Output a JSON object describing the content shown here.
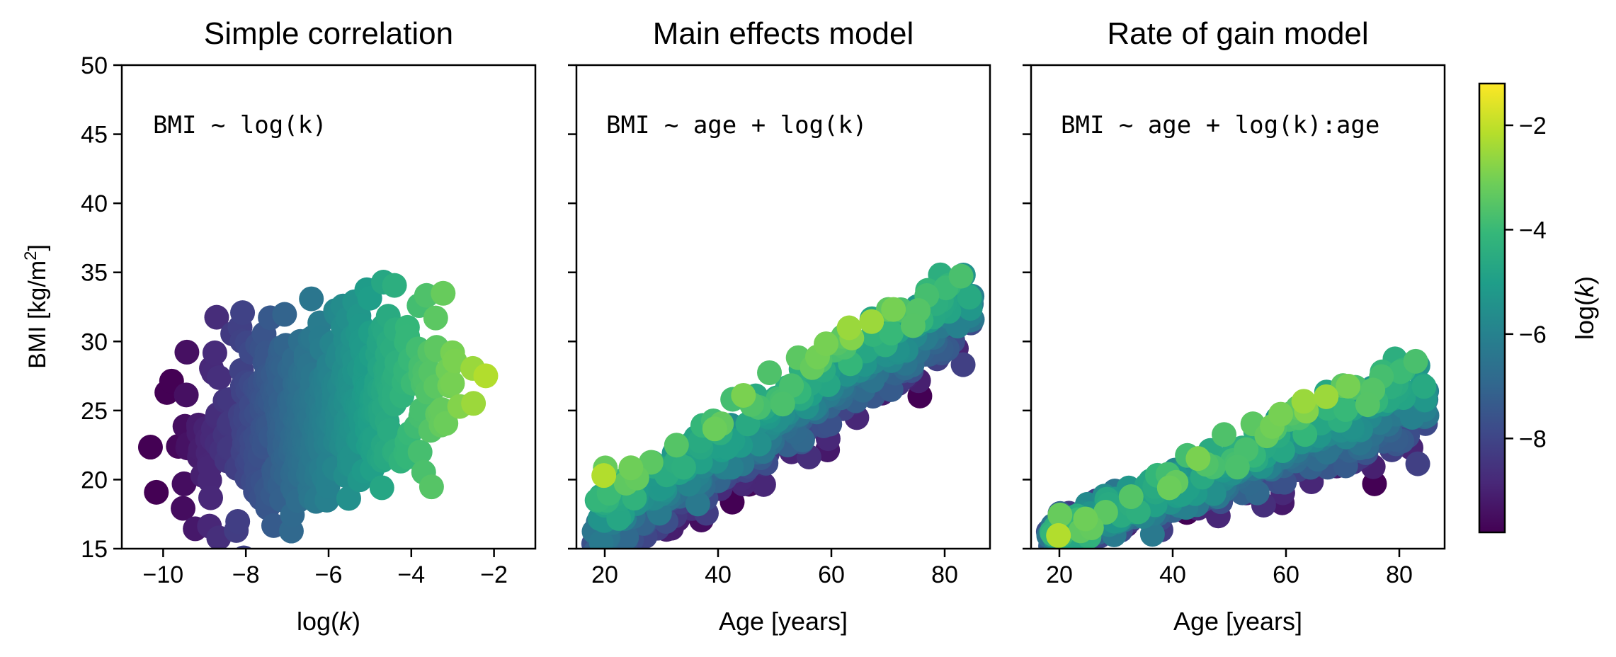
{
  "chart_data": [
    {
      "type": "scatter",
      "title": "Simple correlation",
      "formula": "BMI ~ log(k)",
      "xlabel": "log(k)",
      "ylabel": "BMI [kg/m²]",
      "xlim": [
        -11,
        -1
      ],
      "ylim": [
        15,
        50
      ],
      "xticks": [
        -10,
        -8,
        -6,
        -4,
        -2
      ],
      "yticks": [
        15,
        20,
        25,
        30,
        35,
        40,
        45,
        50
      ],
      "color_by": "log(k)",
      "grid": false
    },
    {
      "type": "scatter",
      "title": "Main effects model",
      "formula": "BMI ~ age + log(k)",
      "xlabel": "Age [years]",
      "ylabel": "",
      "xlim": [
        15,
        88
      ],
      "ylim": [
        15,
        50
      ],
      "xticks": [
        20,
        40,
        60,
        80
      ],
      "color_by": "log(k)",
      "grid": false
    },
    {
      "type": "scatter",
      "title": "Rate of gain model",
      "formula": "BMI ~ age + log(k):age",
      "xlabel": "Age [years]",
      "ylabel": "",
      "xlim": [
        15,
        88
      ],
      "ylim": [
        15,
        50
      ],
      "xticks": [
        20,
        40,
        60,
        80
      ],
      "color_by": "log(k)",
      "grid": false
    }
  ],
  "colorbar": {
    "label": "log(k)",
    "range": [
      -9.8,
      -1.2
    ],
    "ticks": [
      -8,
      -6,
      -4,
      -2
    ],
    "colormap": "viridis"
  },
  "colors": {
    "viridis": [
      "#440154",
      "#482878",
      "#3e4989",
      "#31688e",
      "#26828e",
      "#1f9e89",
      "#35b779",
      "#6ece58",
      "#b5de2b",
      "#fde725"
    ]
  }
}
